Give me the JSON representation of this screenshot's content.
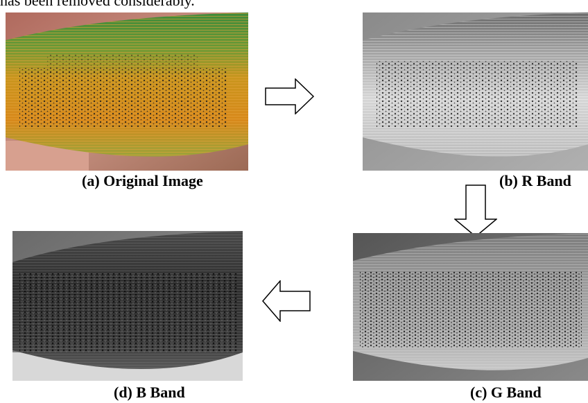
{
  "header_fragment": "has been removed considerably.",
  "panels": {
    "a": {
      "caption": "(a)  Original Image"
    },
    "b": {
      "caption": "(b) R Band"
    },
    "c": {
      "caption": "(c) G Band"
    },
    "d": {
      "caption": "(d)  B Band"
    }
  },
  "arrows": [
    {
      "direction": "right",
      "from": "a",
      "to": "b"
    },
    {
      "direction": "down",
      "from": "b",
      "to": "c"
    },
    {
      "direction": "left",
      "from": "c",
      "to": "d"
    }
  ],
  "colors": {
    "leaf_green": "#4f8f3c",
    "rust_orange": "#d08a1c",
    "spot_dark": "#2a241c",
    "skin": "#c98b7a"
  }
}
